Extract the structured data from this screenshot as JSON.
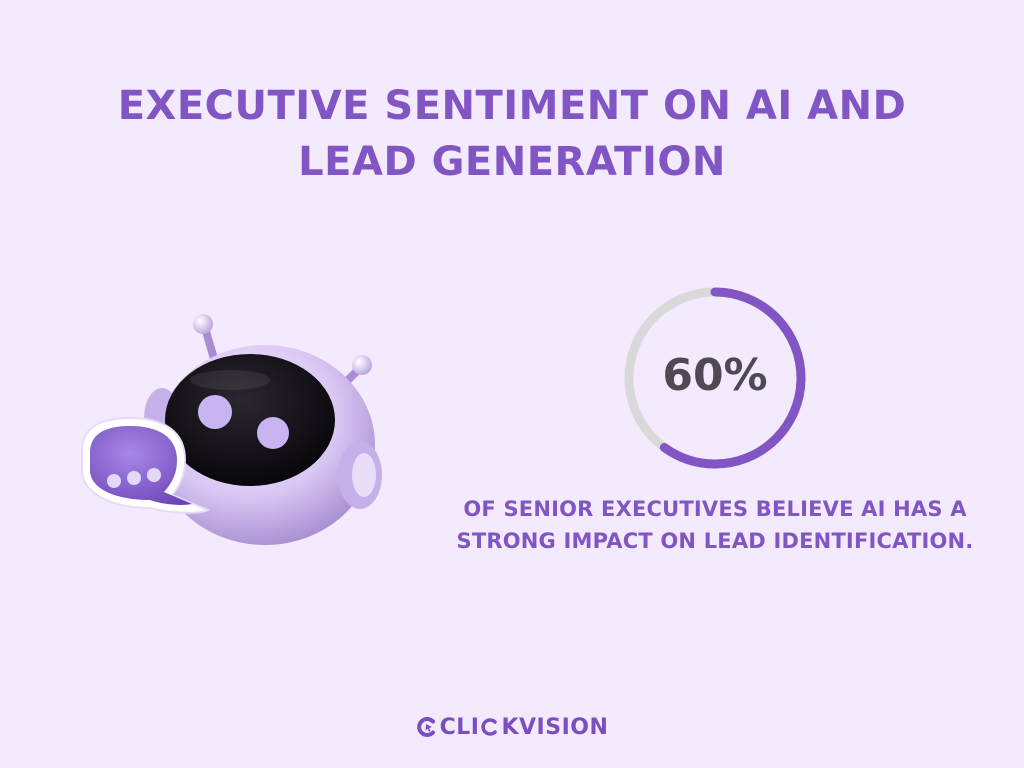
{
  "title": "EXECUTIVE SENTIMENT ON AI AND LEAD GENERATION",
  "chart_data": {
    "type": "pie",
    "value_percent": 60,
    "label": "60%",
    "caption": "OF SENIOR EXECUTIVES BELIEVE AI HAS A STRONG IMPACT ON LEAD IDENTIFICATION.",
    "colors": {
      "filled": "#8155c4",
      "remaining": "#d9d9d9"
    }
  },
  "brand": {
    "name": "CLICKVISION",
    "prefix": "CLI",
    "suffix": "KVISION",
    "icon": "c-cursor-icon"
  },
  "illustration": {
    "icon": "robot-chat-icon"
  },
  "colors": {
    "background": "#f4eafd",
    "accent": "#8155c4",
    "text_dark": "#4e4954"
  }
}
